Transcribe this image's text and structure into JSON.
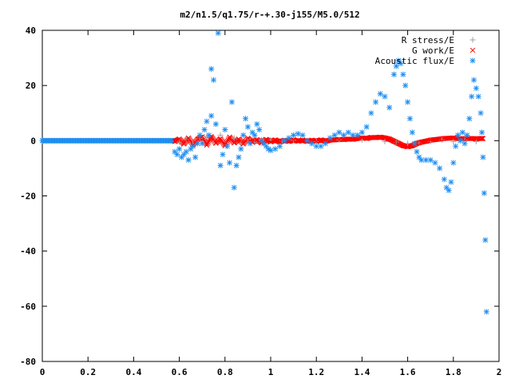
{
  "chart_data": {
    "type": "scatter",
    "title": "m2/n1.5/q1.75/r-+.30-j155/M5.0/512",
    "xlabel": "",
    "ylabel": "",
    "xlim": [
      0,
      2
    ],
    "ylim": [
      -80,
      40
    ],
    "x_ticks": [
      0,
      0.2,
      0.4,
      0.6,
      0.8,
      1,
      1.2,
      1.4,
      1.6,
      1.8,
      2
    ],
    "x_tick_labels": [
      "0",
      "0.2",
      "0.4",
      "0.6",
      "0.8",
      "1",
      "1.2",
      "1.4",
      "1.6",
      "1.8",
      "2"
    ],
    "y_ticks": [
      -80,
      -60,
      -40,
      -20,
      0,
      20,
      40
    ],
    "y_tick_labels": [
      "-80",
      "-60",
      "-40",
      "-20",
      "0",
      "20",
      "40"
    ],
    "grid": false,
    "legend_position": "top-right",
    "series": [
      {
        "name": "R stress/E",
        "marker": "plus",
        "color": "#a0a0a0",
        "points": [
          [
            0.6,
            -0.5
          ],
          [
            0.63,
            0.5
          ],
          [
            0.66,
            -1
          ],
          [
            0.69,
            0.8
          ],
          [
            0.72,
            1.5
          ],
          [
            0.75,
            -0.8
          ],
          [
            0.78,
            2
          ],
          [
            0.81,
            -1.5
          ],
          [
            0.84,
            1
          ],
          [
            0.87,
            -1
          ],
          [
            0.9,
            0.5
          ],
          [
            0.93,
            -0.5
          ],
          [
            0.96,
            0.3
          ],
          [
            1.0,
            0.3
          ],
          [
            1.05,
            -0.2
          ],
          [
            1.1,
            0.2
          ],
          [
            1.2,
            -0.3
          ],
          [
            1.3,
            0.3
          ],
          [
            1.4,
            0.3
          ],
          [
            1.5,
            -0.3
          ],
          [
            1.55,
            -0.5
          ],
          [
            1.6,
            -1
          ],
          [
            1.65,
            -0.8
          ],
          [
            1.7,
            -0.3
          ],
          [
            1.75,
            0.3
          ],
          [
            1.8,
            -0.3
          ],
          [
            1.85,
            0.3
          ],
          [
            1.9,
            -0.3
          ]
        ]
      },
      {
        "name": "G work/E",
        "marker": "cross",
        "color": "#ff0000",
        "points": [
          [
            0.58,
            -0.3
          ],
          [
            0.6,
            0.6
          ],
          [
            0.62,
            -1.2
          ],
          [
            0.64,
            1.0
          ],
          [
            0.66,
            -1.5
          ],
          [
            0.68,
            0.5
          ],
          [
            0.7,
            1.4
          ],
          [
            0.72,
            -1.6
          ],
          [
            0.74,
            1.5
          ],
          [
            0.76,
            -0.9
          ],
          [
            0.78,
            0.7
          ],
          [
            0.8,
            -1.8
          ],
          [
            0.82,
            1.3
          ],
          [
            0.84,
            -0.8
          ],
          [
            0.86,
            0.6
          ],
          [
            0.88,
            -1.2
          ],
          [
            0.9,
            0.9
          ],
          [
            0.92,
            -0.6
          ],
          [
            0.94,
            0.4
          ],
          [
            0.96,
            -0.8
          ],
          [
            0.98,
            0.5
          ],
          [
            1.0,
            -0.4
          ],
          [
            1.02,
            0.3
          ],
          [
            1.04,
            -0.5
          ],
          [
            1.06,
            0.2
          ],
          [
            1.08,
            -0.3
          ],
          [
            1.1,
            0.3
          ],
          [
            1.12,
            -0.2
          ],
          [
            1.14,
            0.2
          ],
          [
            1.16,
            -0.3
          ],
          [
            1.18,
            0.2
          ],
          [
            1.2,
            -0.2
          ],
          [
            1.22,
            0.3
          ],
          [
            1.24,
            -0.2
          ],
          [
            1.26,
            0.2
          ],
          [
            1.28,
            0.3
          ],
          [
            1.3,
            0.5
          ],
          [
            1.32,
            0.4
          ],
          [
            1.34,
            0.6
          ],
          [
            1.36,
            0.5
          ],
          [
            1.38,
            0.8
          ],
          [
            1.4,
            1.0
          ],
          [
            1.42,
            0.8
          ],
          [
            1.44,
            1.2
          ],
          [
            1.46,
            1.1
          ],
          [
            1.48,
            1.3
          ],
          [
            1.5,
            1.0
          ],
          [
            1.52,
            0.6
          ],
          [
            1.54,
            -0.2
          ],
          [
            1.56,
            -1.0
          ],
          [
            1.58,
            -1.8
          ],
          [
            1.6,
            -2.2
          ],
          [
            1.62,
            -1.8
          ],
          [
            1.64,
            -1.0
          ],
          [
            1.66,
            -0.5
          ],
          [
            1.68,
            -0.2
          ],
          [
            1.7,
            0.2
          ],
          [
            1.72,
            0.4
          ],
          [
            1.74,
            0.6
          ],
          [
            1.76,
            0.8
          ],
          [
            1.78,
            0.9
          ],
          [
            1.8,
            1.0
          ],
          [
            1.82,
            0.8
          ],
          [
            1.84,
            0.7
          ],
          [
            1.86,
            0.8
          ],
          [
            1.88,
            0.8
          ],
          [
            1.9,
            0.7
          ],
          [
            1.92,
            0.8
          ],
          [
            1.93,
            0.8
          ]
        ]
      },
      {
        "name": "Acoustic flux/E",
        "marker": "star",
        "color": "#1f8ef1",
        "points": [
          [
            0.58,
            -4
          ],
          [
            0.59,
            -5
          ],
          [
            0.6,
            -3
          ],
          [
            0.61,
            -6
          ],
          [
            0.62,
            -5
          ],
          [
            0.63,
            -4
          ],
          [
            0.64,
            -7
          ],
          [
            0.65,
            -3
          ],
          [
            0.66,
            -2
          ],
          [
            0.67,
            -6
          ],
          [
            0.68,
            -1
          ],
          [
            0.69,
            2
          ],
          [
            0.7,
            -1
          ],
          [
            0.71,
            4
          ],
          [
            0.72,
            7
          ],
          [
            0.73,
            2
          ],
          [
            0.74,
            9
          ],
          [
            0.74,
            26
          ],
          [
            0.75,
            22
          ],
          [
            0.76,
            6
          ],
          [
            0.77,
            39
          ],
          [
            0.78,
            -9
          ],
          [
            0.79,
            -5
          ],
          [
            0.8,
            4
          ],
          [
            0.81,
            -2
          ],
          [
            0.82,
            -8
          ],
          [
            0.83,
            14
          ],
          [
            0.84,
            -17
          ],
          [
            0.85,
            -9
          ],
          [
            0.86,
            -6
          ],
          [
            0.87,
            -3
          ],
          [
            0.88,
            2
          ],
          [
            0.89,
            8
          ],
          [
            0.9,
            5
          ],
          [
            0.91,
            -1
          ],
          [
            0.92,
            3
          ],
          [
            0.93,
            2
          ],
          [
            0.94,
            6
          ],
          [
            0.95,
            4
          ],
          [
            0.96,
            0
          ],
          [
            0.97,
            -1
          ],
          [
            0.98,
            -2
          ],
          [
            0.99,
            -3
          ],
          [
            1.0,
            -3.5
          ],
          [
            1.02,
            -3
          ],
          [
            1.04,
            -2
          ],
          [
            1.06,
            0
          ],
          [
            1.08,
            1
          ],
          [
            1.1,
            2
          ],
          [
            1.12,
            2.5
          ],
          [
            1.14,
            2
          ],
          [
            1.16,
            0
          ],
          [
            1.18,
            -1
          ],
          [
            1.2,
            -2
          ],
          [
            1.22,
            -2
          ],
          [
            1.24,
            -1
          ],
          [
            1.26,
            1
          ],
          [
            1.28,
            2
          ],
          [
            1.3,
            3
          ],
          [
            1.32,
            2
          ],
          [
            1.34,
            3
          ],
          [
            1.36,
            2
          ],
          [
            1.38,
            2
          ],
          [
            1.4,
            3
          ],
          [
            1.42,
            5
          ],
          [
            1.44,
            10
          ],
          [
            1.46,
            14
          ],
          [
            1.48,
            17
          ],
          [
            1.5,
            16
          ],
          [
            1.52,
            12
          ],
          [
            1.54,
            24
          ],
          [
            1.55,
            27
          ],
          [
            1.56,
            29
          ],
          [
            1.57,
            28
          ],
          [
            1.58,
            24
          ],
          [
            1.59,
            20
          ],
          [
            1.6,
            14
          ],
          [
            1.61,
            8
          ],
          [
            1.62,
            3
          ],
          [
            1.63,
            -1
          ],
          [
            1.64,
            -4
          ],
          [
            1.65,
            -6
          ],
          [
            1.66,
            -7
          ],
          [
            1.68,
            -7
          ],
          [
            1.7,
            -7
          ],
          [
            1.72,
            -8
          ],
          [
            1.74,
            -10
          ],
          [
            1.76,
            -14
          ],
          [
            1.77,
            -17
          ],
          [
            1.78,
            -18
          ],
          [
            1.79,
            -15
          ],
          [
            1.8,
            -8
          ],
          [
            1.81,
            -2
          ],
          [
            1.82,
            2
          ],
          [
            1.83,
            0
          ],
          [
            1.84,
            3
          ],
          [
            1.85,
            -1
          ],
          [
            1.86,
            2
          ],
          [
            1.87,
            8
          ],
          [
            1.88,
            16
          ],
          [
            1.89,
            22
          ],
          [
            1.9,
            19
          ],
          [
            1.91,
            16
          ],
          [
            1.92,
            10
          ],
          [
            1.925,
            3
          ],
          [
            1.93,
            -6
          ],
          [
            1.935,
            -19
          ],
          [
            1.94,
            -36
          ],
          [
            1.945,
            -62
          ]
        ]
      }
    ]
  }
}
